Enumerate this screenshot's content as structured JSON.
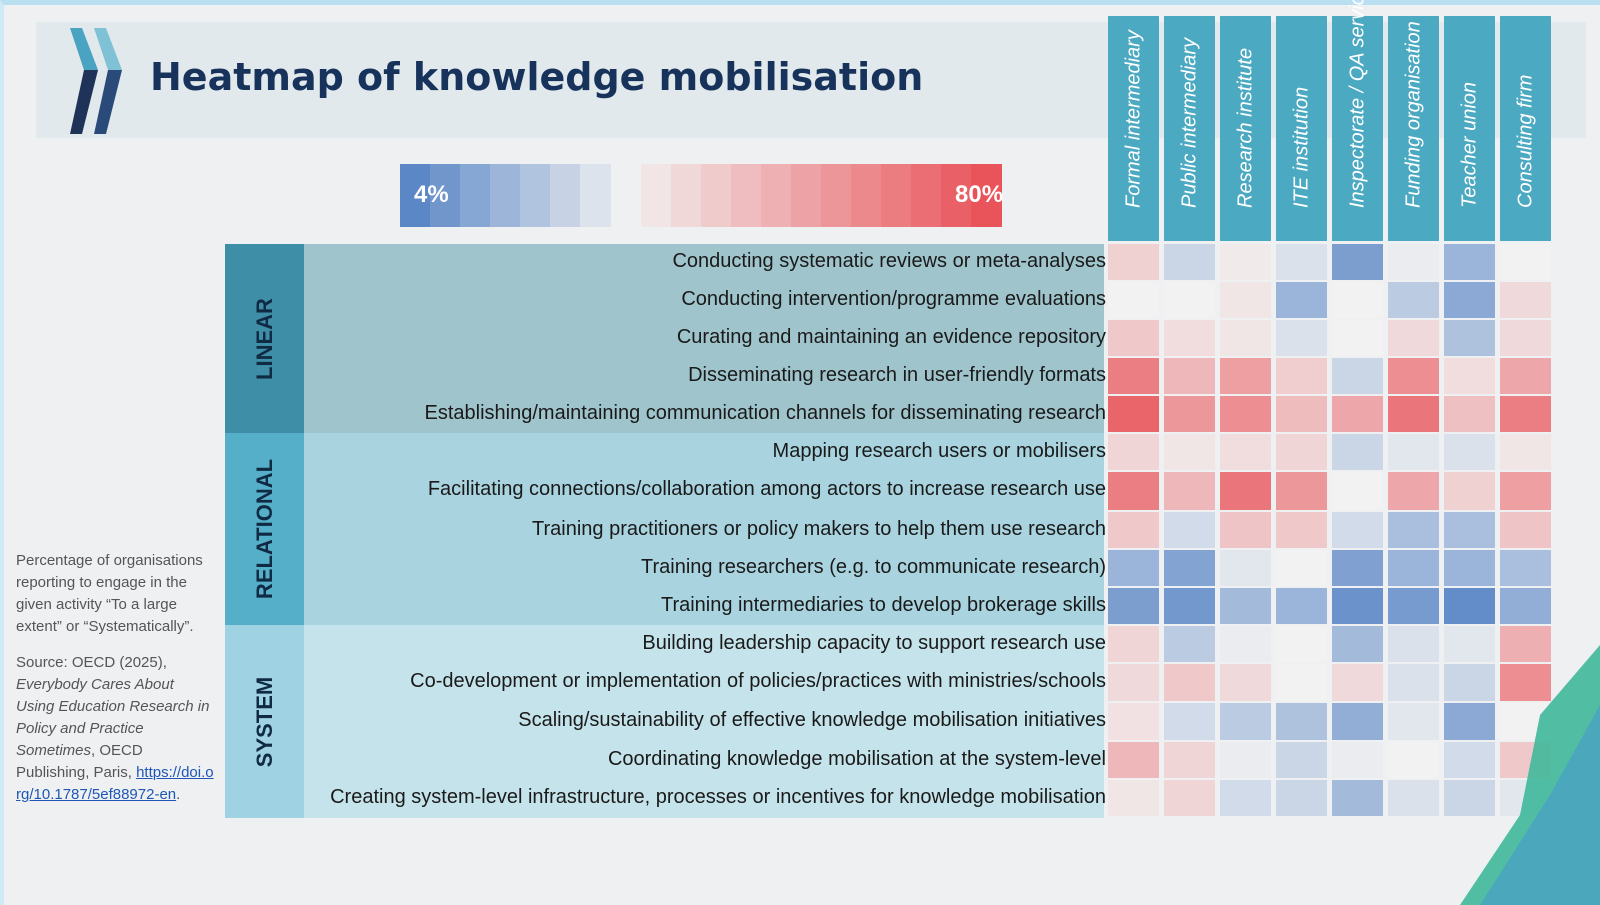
{
  "title": "Heatmap of knowledge mobilisation",
  "legend": {
    "min_label": "4%",
    "max_label": "80%",
    "low_color": "#5b87c6",
    "mid_color": "#f2f2f2",
    "high_color": "#e8545a"
  },
  "note": {
    "description": "Percentage of organisations reporting to engage in the given activity “To a large extent” or “Systematically”.",
    "source_prefix": "Source: OECD (2025), ",
    "source_title": "Everybody Cares About Using Education Research in Policy and Practice Sometimes",
    "source_suffix": ", OECD Publishing, Paris, ",
    "source_link": "https://doi.org/10.1787/5ef88972-en",
    "source_end": "."
  },
  "groups": [
    {
      "name": "LINEAR",
      "rows": 5,
      "label_color": "#3d8ea6",
      "band_color": "#9fc4cc"
    },
    {
      "name": "RELATIONAL",
      "rows": 5,
      "label_color": "#55afc8",
      "band_color": "#a8d3df"
    },
    {
      "name": "SYSTEM",
      "rows": 5,
      "label_color": "#9fd3e3",
      "band_color": "#c5e3ea"
    }
  ],
  "chart_data": {
    "type": "heatmap",
    "title": "Heatmap of knowledge mobilisation",
    "value_range": [
      4,
      80
    ],
    "columns": [
      "Formal intermediary",
      "Public intermediary",
      "Research institute",
      "ITE institution",
      "Inspectorate / QA service",
      "Funding organisation",
      "Teacher union",
      "Consulting firm"
    ],
    "rows": [
      "Conducting systematic reviews or meta-analyses",
      "Conducting intervention/programme evaluations",
      "Curating and maintaining an evidence repository",
      "Disseminating research in user-friendly formats",
      "Establishing/maintaining communication channels for disseminating research",
      "Mapping research users or mobilisers",
      "Facilitating connections/collaboration among actors to increase research use",
      "Training practitioners or policy makers to help them use research",
      "Training researchers (e.g. to communicate research)",
      "Training intermediaries to develop brokerage skills",
      "Building leadership capacity to support research use",
      "Co-development or implementation of policies/practices with ministries/schools",
      "Scaling/sustainability of effective knowledge mobilisation initiatives",
      "Coordinating knowledge mobilisation at the system-level",
      "Creating system-level infrastructure, processes or incentives for knowledge mobilisation"
    ],
    "values": [
      [
        50,
        32,
        44,
        36,
        12,
        40,
        20,
        42
      ],
      [
        42,
        42,
        45,
        20,
        42,
        28,
        16,
        48
      ],
      [
        52,
        47,
        45,
        36,
        42,
        48,
        25,
        48
      ],
      [
        70,
        56,
        62,
        51,
        32,
        66,
        47,
        60
      ],
      [
        76,
        64,
        66,
        55,
        60,
        72,
        54,
        70
      ],
      [
        49,
        45,
        47,
        49,
        32,
        38,
        36,
        45
      ],
      [
        70,
        56,
        72,
        64,
        42,
        60,
        50,
        62
      ],
      [
        52,
        34,
        53,
        52,
        34,
        24,
        24,
        53
      ],
      [
        20,
        14,
        38,
        42,
        13,
        20,
        20,
        24
      ],
      [
        12,
        10,
        22,
        20,
        8,
        11,
        6,
        18
      ],
      [
        49,
        28,
        40,
        42,
        22,
        36,
        38,
        58
      ],
      [
        48,
        52,
        48,
        42,
        48,
        36,
        32,
        66
      ],
      [
        46,
        34,
        28,
        25,
        18,
        38,
        16,
        42
      ],
      [
        56,
        49,
        40,
        32,
        40,
        42,
        34,
        52
      ],
      [
        45,
        49,
        34,
        32,
        22,
        36,
        32,
        38
      ]
    ]
  }
}
